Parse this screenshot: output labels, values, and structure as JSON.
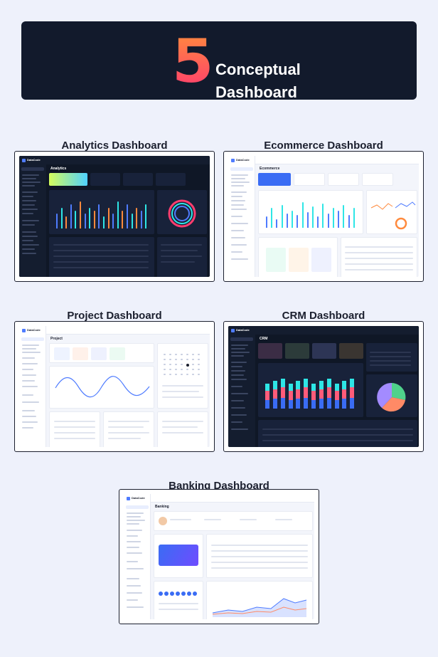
{
  "banner": {
    "number": "5",
    "line1": "Conceptual",
    "line2": "Dashboard"
  },
  "dashboards": [
    {
      "label": "Analytics Dashboard",
      "theme": "dark",
      "page_title": "Analytics"
    },
    {
      "label": "Ecommerce Dashboard",
      "theme": "light",
      "page_title": "Ecommerce"
    },
    {
      "label": "Project Dashboard",
      "theme": "light",
      "page_title": "Project"
    },
    {
      "label": "CRM Dashboard",
      "theme": "dark",
      "page_title": "CRM"
    },
    {
      "label": "Banking Dashboard",
      "theme": "light",
      "page_title": "Banking"
    }
  ],
  "brand_name": "DataCode",
  "colors": {
    "accent_blue": "#4f7cff",
    "accent_cyan": "#2ee6e6",
    "accent_pink": "#ff3d6e",
    "accent_orange": "#ff8a3d"
  }
}
